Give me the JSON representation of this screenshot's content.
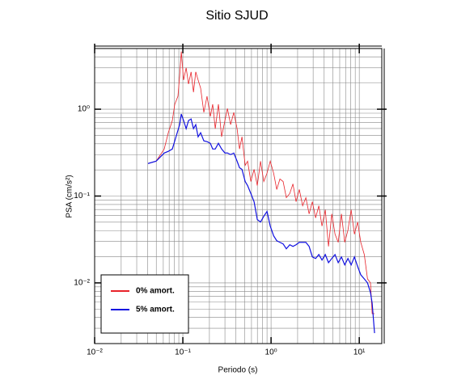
{
  "chart_data": {
    "type": "line",
    "title": "Sitio SJUD",
    "xlabel": "Periodo (s)",
    "ylabel": "PSA (cm/s²)",
    "xlog": true,
    "ylog": true,
    "grid": true,
    "legend": "lower left",
    "xlim": [
      0.01,
      18
    ],
    "ylim": [
      0.002,
      5
    ],
    "xticks": [
      {
        "value": 0.01,
        "label": "10⁻²"
      },
      {
        "value": 0.1,
        "label": "10⁻¹"
      },
      {
        "value": 1,
        "label": "10⁰"
      },
      {
        "value": 10,
        "label": "10¹"
      }
    ],
    "yticks": [
      {
        "value": 0.01,
        "label": "10⁻²"
      },
      {
        "value": 0.1,
        "label": "10⁻¹"
      },
      {
        "value": 1,
        "label": "10⁰"
      }
    ],
    "xminorticks": [
      0.02,
      0.03,
      0.04,
      0.05,
      0.06,
      0.07,
      0.08,
      0.09,
      0.2,
      0.3,
      0.4,
      0.5,
      0.6,
      0.7,
      0.8,
      0.9,
      2,
      3,
      4,
      5,
      6,
      7,
      8,
      9
    ],
    "yminorticks": [
      0.003,
      0.004,
      0.005,
      0.006,
      0.007,
      0.008,
      0.009,
      0.02,
      0.03,
      0.04,
      0.05,
      0.06,
      0.07,
      0.08,
      0.09,
      0.2,
      0.3,
      0.4,
      0.5,
      0.6,
      0.7,
      0.8,
      0.9,
      2,
      3,
      4,
      5
    ],
    "x": [
      0.0403,
      0.0498,
      0.0615,
      0.0684,
      0.076,
      0.081,
      0.088,
      0.092,
      0.096,
      0.102,
      0.109,
      0.116,
      0.124,
      0.132,
      0.14,
      0.149,
      0.159,
      0.173,
      0.188,
      0.205,
      0.218,
      0.233,
      0.253,
      0.275,
      0.3,
      0.32,
      0.348,
      0.378,
      0.412,
      0.439,
      0.468,
      0.509,
      0.542,
      0.59,
      0.642,
      0.698,
      0.76,
      0.827,
      0.9,
      0.979,
      1.07,
      1.16,
      1.26,
      1.37,
      1.49,
      1.63,
      1.77,
      1.92,
      2.09,
      2.28,
      2.48,
      2.7,
      2.94,
      3.2,
      3.48,
      3.78,
      4.12,
      4.48,
      4.88,
      5.31,
      5.77,
      6.28,
      6.84,
      7.44,
      8.09,
      8.81,
      9.59,
      10.4,
      11.4,
      12.4,
      13.4,
      14.0,
      14.9
    ],
    "series": [
      {
        "name": "0% amort.",
        "color": "#e8232a",
        "width": 0.8,
        "values": [
          0.237,
          0.252,
          0.348,
          0.536,
          0.74,
          1.14,
          1.41,
          2.42,
          4.61,
          2.17,
          3.0,
          1.95,
          2.69,
          1.57,
          2.69,
          2.17,
          1.75,
          0.918,
          1.41,
          0.824,
          1.14,
          0.597,
          1.14,
          0.481,
          0.74,
          1.02,
          0.664,
          0.918,
          0.597,
          0.348,
          0.481,
          0.226,
          0.252,
          0.147,
          0.203,
          0.132,
          0.252,
          0.147,
          0.183,
          0.252,
          0.183,
          0.119,
          0.157,
          0.147,
          0.0958,
          0.107,
          0.138,
          0.0861,
          0.119,
          0.0773,
          0.0958,
          0.0623,
          0.0861,
          0.056,
          0.0773,
          0.0451,
          0.0694,
          0.0263,
          0.0623,
          0.0364,
          0.0293,
          0.0623,
          0.0293,
          0.0405,
          0.0694,
          0.0364,
          0.0502,
          0.0293,
          0.0212,
          0.0111,
          0.01,
          0.00442,
          0.00442
        ]
      },
      {
        "name": "5% amort.",
        "color": "#1010e0",
        "width": 1.2,
        "values": [
          0.237,
          0.252,
          0.313,
          0.327,
          0.348,
          0.432,
          0.572,
          0.664,
          0.879,
          0.74,
          0.597,
          0.74,
          0.772,
          0.597,
          0.664,
          0.481,
          0.536,
          0.432,
          0.423,
          0.405,
          0.348,
          0.348,
          0.405,
          0.348,
          0.313,
          0.313,
          0.3,
          0.313,
          0.252,
          0.212,
          0.203,
          0.147,
          0.132,
          0.107,
          0.0861,
          0.0536,
          0.0502,
          0.0584,
          0.0665,
          0.0451,
          0.0348,
          0.0306,
          0.0293,
          0.0281,
          0.0247,
          0.0275,
          0.0263,
          0.0275,
          0.0293,
          0.0293,
          0.0293,
          0.0263,
          0.0199,
          0.0191,
          0.0212,
          0.0183,
          0.0212,
          0.0171,
          0.0191,
          0.0212,
          0.0171,
          0.0199,
          0.0161,
          0.0191,
          0.0161,
          0.0199,
          0.0154,
          0.0124,
          0.0111,
          0.01,
          0.00773,
          0.00584,
          0.00264
        ]
      }
    ]
  }
}
